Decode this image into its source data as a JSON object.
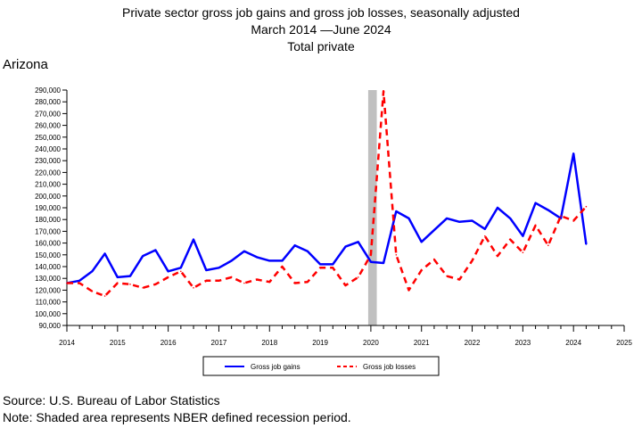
{
  "title": {
    "line1": "Private sector gross job gains and gross job losses, seasonally adjusted",
    "line2": "March 2014 —June 2024",
    "line3": "Total private"
  },
  "region": "Arizona",
  "footer": {
    "source": "Source: U.S. Bureau of Labor Statistics",
    "note": "Note: Shaded area represents NBER defined recession period."
  },
  "colors": {
    "gains": "#0000ff",
    "losses": "#ff0000",
    "recession": "#c0c0c0",
    "axis": "#000000"
  },
  "chart_data": {
    "type": "line",
    "title": "Private sector gross job gains and gross job losses, seasonally adjusted",
    "subtitle": "March 2014 —June 2024",
    "xlabel": "",
    "ylabel": "",
    "xlim": [
      2014,
      2025
    ],
    "ylim": [
      90000,
      290000
    ],
    "xticks": [
      "2014",
      "2015",
      "2016",
      "2017",
      "2018",
      "2019",
      "2020",
      "2021",
      "2022",
      "2023",
      "2024",
      "2025"
    ],
    "yticks": [
      "90,000",
      "100,000",
      "110,000",
      "120,000",
      "130,000",
      "140,000",
      "150,000",
      "160,000",
      "170,000",
      "180,000",
      "190,000",
      "200,000",
      "210,000",
      "220,000",
      "230,000",
      "240,000",
      "250,000",
      "260,000",
      "270,000",
      "280,000",
      "290,000"
    ],
    "grid": false,
    "legend_position": "bottom",
    "recession_band": [
      2020.0,
      2020.17
    ],
    "series": [
      {
        "name": "Gross job gains",
        "style": "solid",
        "points": [
          [
            2014.0,
            126000
          ],
          [
            2014.25,
            128000
          ],
          [
            2014.5,
            136000
          ],
          [
            2014.75,
            151000
          ],
          [
            2015.0,
            131000
          ],
          [
            2015.25,
            132000
          ],
          [
            2015.5,
            149000
          ],
          [
            2015.75,
            154000
          ],
          [
            2016.0,
            136000
          ],
          [
            2016.25,
            139000
          ],
          [
            2016.5,
            163000
          ],
          [
            2016.75,
            137000
          ],
          [
            2017.0,
            139000
          ],
          [
            2017.25,
            145000
          ],
          [
            2017.5,
            153000
          ],
          [
            2017.75,
            148000
          ],
          [
            2018.0,
            145000
          ],
          [
            2018.25,
            145000
          ],
          [
            2018.5,
            158000
          ],
          [
            2018.75,
            153000
          ],
          [
            2019.0,
            142000
          ],
          [
            2019.25,
            142000
          ],
          [
            2019.5,
            157000
          ],
          [
            2019.75,
            161000
          ],
          [
            2020.0,
            144000
          ],
          [
            2020.25,
            143000
          ],
          [
            2020.5,
            187000
          ],
          [
            2020.75,
            181000
          ],
          [
            2021.0,
            161000
          ],
          [
            2021.25,
            171000
          ],
          [
            2021.5,
            181000
          ],
          [
            2021.75,
            178000
          ],
          [
            2022.0,
            179000
          ],
          [
            2022.25,
            172000
          ],
          [
            2022.5,
            190000
          ],
          [
            2022.75,
            181000
          ],
          [
            2023.0,
            166000
          ],
          [
            2023.25,
            194000
          ],
          [
            2023.5,
            188000
          ],
          [
            2023.75,
            181000
          ],
          [
            2024.0,
            236000
          ],
          [
            2024.25,
            159000
          ]
        ]
      },
      {
        "name": "Gross job losses",
        "style": "dashed",
        "points": [
          [
            2014.0,
            126000
          ],
          [
            2014.25,
            126000
          ],
          [
            2014.5,
            119000
          ],
          [
            2014.75,
            115000
          ],
          [
            2015.0,
            126000
          ],
          [
            2015.25,
            125000
          ],
          [
            2015.5,
            122000
          ],
          [
            2015.75,
            125000
          ],
          [
            2016.0,
            131000
          ],
          [
            2016.25,
            136000
          ],
          [
            2016.5,
            122000
          ],
          [
            2016.75,
            128000
          ],
          [
            2017.0,
            128000
          ],
          [
            2017.25,
            131000
          ],
          [
            2017.5,
            126000
          ],
          [
            2017.75,
            129000
          ],
          [
            2018.0,
            127000
          ],
          [
            2018.25,
            140000
          ],
          [
            2018.5,
            126000
          ],
          [
            2018.75,
            127000
          ],
          [
            2019.0,
            139000
          ],
          [
            2019.25,
            139000
          ],
          [
            2019.5,
            124000
          ],
          [
            2019.75,
            131000
          ],
          [
            2020.0,
            150000
          ],
          [
            2020.25,
            289000
          ],
          [
            2020.5,
            150000
          ],
          [
            2020.75,
            120000
          ],
          [
            2021.0,
            137000
          ],
          [
            2021.25,
            146000
          ],
          [
            2021.5,
            132000
          ],
          [
            2021.75,
            129000
          ],
          [
            2022.0,
            145000
          ],
          [
            2022.25,
            166000
          ],
          [
            2022.5,
            149000
          ],
          [
            2022.75,
            163000
          ],
          [
            2023.0,
            152000
          ],
          [
            2023.25,
            175000
          ],
          [
            2023.5,
            158000
          ],
          [
            2023.75,
            183000
          ],
          [
            2024.0,
            179000
          ],
          [
            2024.25,
            191000
          ]
        ]
      }
    ]
  }
}
